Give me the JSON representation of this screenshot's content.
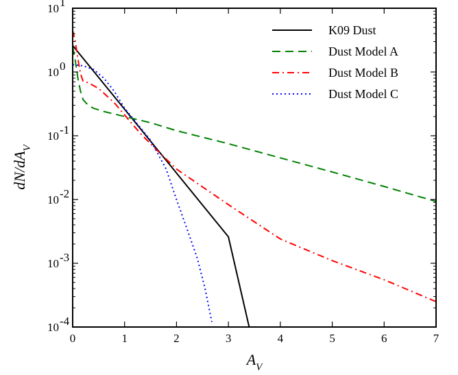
{
  "chart_data": {
    "type": "line",
    "xlabel": "A_V",
    "ylabel": "dN/dA_V",
    "xlim": [
      0,
      7
    ],
    "ylim": [
      0.0001,
      10
    ],
    "yscale": "log",
    "x_ticks": [
      0,
      1,
      2,
      3,
      4,
      5,
      6,
      7
    ],
    "y_ticks": [
      {
        "value": 0.0001,
        "base": "10",
        "exp": "-4"
      },
      {
        "value": 0.001,
        "base": "10",
        "exp": "-3"
      },
      {
        "value": 0.01,
        "base": "10",
        "exp": "-2"
      },
      {
        "value": 0.1,
        "base": "10",
        "exp": "-1"
      },
      {
        "value": 1,
        "base": "10",
        "exp": "0"
      },
      {
        "value": 10,
        "base": "10",
        "exp": "1"
      }
    ],
    "grid": false,
    "legend_position": "top-right",
    "series": [
      {
        "name": "K09 Dust",
        "color": "#000000",
        "style": "solid",
        "x": [
          0,
          0.5,
          1,
          1.5,
          2,
          2.5,
          3,
          3.4
        ],
        "y": [
          2.6,
          0.82,
          0.26,
          0.082,
          0.026,
          0.0082,
          0.0026,
          0.0001
        ]
      },
      {
        "name": "Dust Model A",
        "color": "#008000",
        "style": "dashed",
        "x": [
          0,
          0.05,
          0.1,
          0.15,
          0.2,
          0.3,
          0.4,
          0.6,
          1.0,
          1.5,
          2,
          3,
          4,
          5,
          6,
          7
        ],
        "y": [
          2.5,
          1.5,
          0.8,
          0.5,
          0.37,
          0.3,
          0.27,
          0.24,
          0.2,
          0.16,
          0.12,
          0.075,
          0.045,
          0.027,
          0.016,
          0.0093
        ]
      },
      {
        "name": "Dust Model B",
        "color": "#ff0000",
        "style": "dashdot",
        "x": [
          0,
          0.05,
          0.1,
          0.15,
          0.2,
          0.3,
          0.5,
          0.8,
          1.1,
          1.3,
          1.6,
          2,
          3,
          4,
          5,
          6,
          7
        ],
        "y": [
          4.5,
          3.0,
          1.6,
          0.95,
          0.72,
          0.68,
          0.55,
          0.33,
          0.17,
          0.11,
          0.062,
          0.03,
          0.0083,
          0.0024,
          0.0011,
          0.00055,
          0.00025
        ]
      },
      {
        "name": "Dust Model C",
        "color": "#0000ff",
        "style": "dotted",
        "x": [
          0,
          0.2,
          0.4,
          0.6,
          0.8,
          1.0,
          1.2,
          1.5,
          1.8,
          2.0,
          2.2,
          2.4,
          2.55,
          2.68
        ],
        "y": [
          1.3,
          1.25,
          1.1,
          0.8,
          0.5,
          0.27,
          0.17,
          0.085,
          0.03,
          0.01,
          0.0035,
          0.0012,
          0.0004,
          0.00012
        ]
      }
    ]
  }
}
